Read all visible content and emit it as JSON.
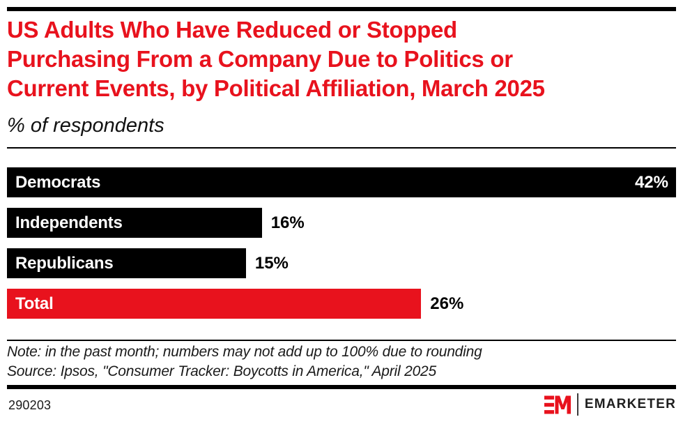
{
  "header": {
    "title": "US Adults Who Have Reduced or Stopped Purchasing From a Company Due to Politics or Current Events, by Political Affiliation, March 2025",
    "title_lines": [
      "US Adults Who Have Reduced or Stopped",
      "Purchasing From a Company Due to Politics or",
      "Current Events, by Political Affiliation, March 2025"
    ],
    "subtitle": "% of respondents"
  },
  "chart_data": {
    "type": "bar",
    "orientation": "horizontal",
    "title": "US Adults Who Have Reduced or Stopped Purchasing From a Company Due to Politics or Current Events, by Political Affiliation, March 2025",
    "subtitle": "% of respondents",
    "categories": [
      "Democrats",
      "Independents",
      "Republicans",
      "Total"
    ],
    "values": [
      42,
      16,
      15,
      26
    ],
    "value_labels": [
      "42%",
      "16%",
      "15%",
      "26%"
    ],
    "value_suffix": "%",
    "xlim": [
      0,
      42
    ],
    "grid": false,
    "legend": false,
    "bar_colors": [
      "#000000",
      "#000000",
      "#000000",
      "#E8121D"
    ],
    "max_value_label_placement": "inside-right",
    "xlabel": "",
    "ylabel": ""
  },
  "footnotes": {
    "note": "Note: in the past month; numbers may not add up to 100% due to rounding",
    "source": "Source: Ipsos, \"Consumer Tracker: Boycotts in America,\" April 2025"
  },
  "footer": {
    "chart_id": "290203",
    "brand_name": "EMARKETER"
  },
  "colors": {
    "accent_red": "#E8121D",
    "bar_black": "#000000",
    "text_dark": "#1a1a1a",
    "background": "#ffffff"
  }
}
